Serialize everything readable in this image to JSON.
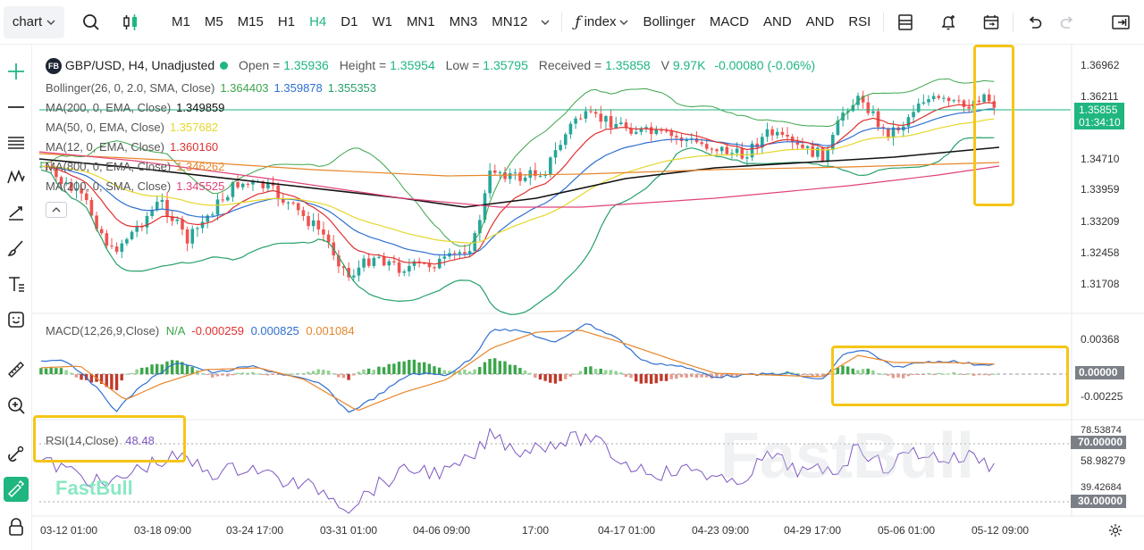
{
  "toolbar": {
    "chart_select": "chart",
    "timeframes": [
      "M1",
      "M5",
      "M15",
      "H1",
      "H4",
      "D1",
      "W1",
      "MN1",
      "MN3",
      "MN12"
    ],
    "active_timeframe": "H4",
    "index_label": "index",
    "indicators": [
      "Bollinger",
      "MACD",
      "AND",
      "AND",
      "RSI"
    ]
  },
  "main_legend": {
    "badge": "FB",
    "symbol": "GBP/USD, H4, Unadjusted",
    "open_label": "Open =",
    "open": "1.35936",
    "height_label": "Height =",
    "height": "1.35954",
    "low_label": "Low =",
    "low": "1.35795",
    "received_label": "Received =",
    "received": "1.35858",
    "volume_label": "V",
    "volume": "9.97K",
    "change": "-0.00080 (-0.06%)"
  },
  "indicators": [
    {
      "label": "Bollinger(26, 0, 2.0, SMA, Close)",
      "values": [
        "1.364403",
        "1.359878",
        "1.355353"
      ],
      "colors": [
        "#3ca54b",
        "#2f6fd1",
        "#26a06a"
      ]
    },
    {
      "label": "MA(200, 0, EMA, Close)",
      "values": [
        "1.349859"
      ],
      "colors": [
        "#111111"
      ]
    },
    {
      "label": "MA(50, 0, EMA, Close)",
      "values": [
        "1.357682"
      ],
      "colors": [
        "#e5d72a"
      ]
    },
    {
      "label": "MA(12, 0, EMA, Close)",
      "values": [
        "1.360160"
      ],
      "colors": [
        "#e03131"
      ]
    },
    {
      "label": "MA(800, 0, EMA, Close)",
      "values": [
        "1.346262"
      ],
      "colors": [
        "#e8862a"
      ]
    },
    {
      "label": "MA(200, 0, SMA, Close)",
      "values": [
        "1.345525"
      ],
      "colors": [
        "#e0437a"
      ]
    }
  ],
  "price_axis": [
    "1.36962",
    "1.36211",
    "1.34710",
    "1.33959",
    "1.33209",
    "1.32458",
    "1.31708"
  ],
  "last_price": {
    "price": "1.35855",
    "countdown": "01:34:10",
    "color": "#1fb67f"
  },
  "macd": {
    "label": "MACD(12,26,9,Close)",
    "na": "N/A",
    "hist": "-0.000259",
    "macd": "0.000825",
    "signal": "0.001084",
    "axis": [
      "0.00368",
      "-0.00225"
    ],
    "zero_tag": "0.00000"
  },
  "rsi": {
    "label": "RSI(14,Close)",
    "value": "48.48",
    "axis": [
      "78.53874",
      "58.98279",
      "39.42684"
    ],
    "upper_tag": "70.00000",
    "lower_tag": "30.00000"
  },
  "time_axis": [
    "03-12 01:00",
    "03-18 09:00",
    "03-24 17:00",
    "03-31 01:00",
    "04-06 09:00",
    "17:00",
    "04-17 01:00",
    "04-23 09:00",
    "04-29 17:00",
    "05-06 01:00",
    "05-12 09:00"
  ],
  "watermark": "FastBull",
  "colors": {
    "up": "#26a69a",
    "down": "#ef5350",
    "accent": "#1fb67f",
    "highlight": "#f5c518"
  }
}
